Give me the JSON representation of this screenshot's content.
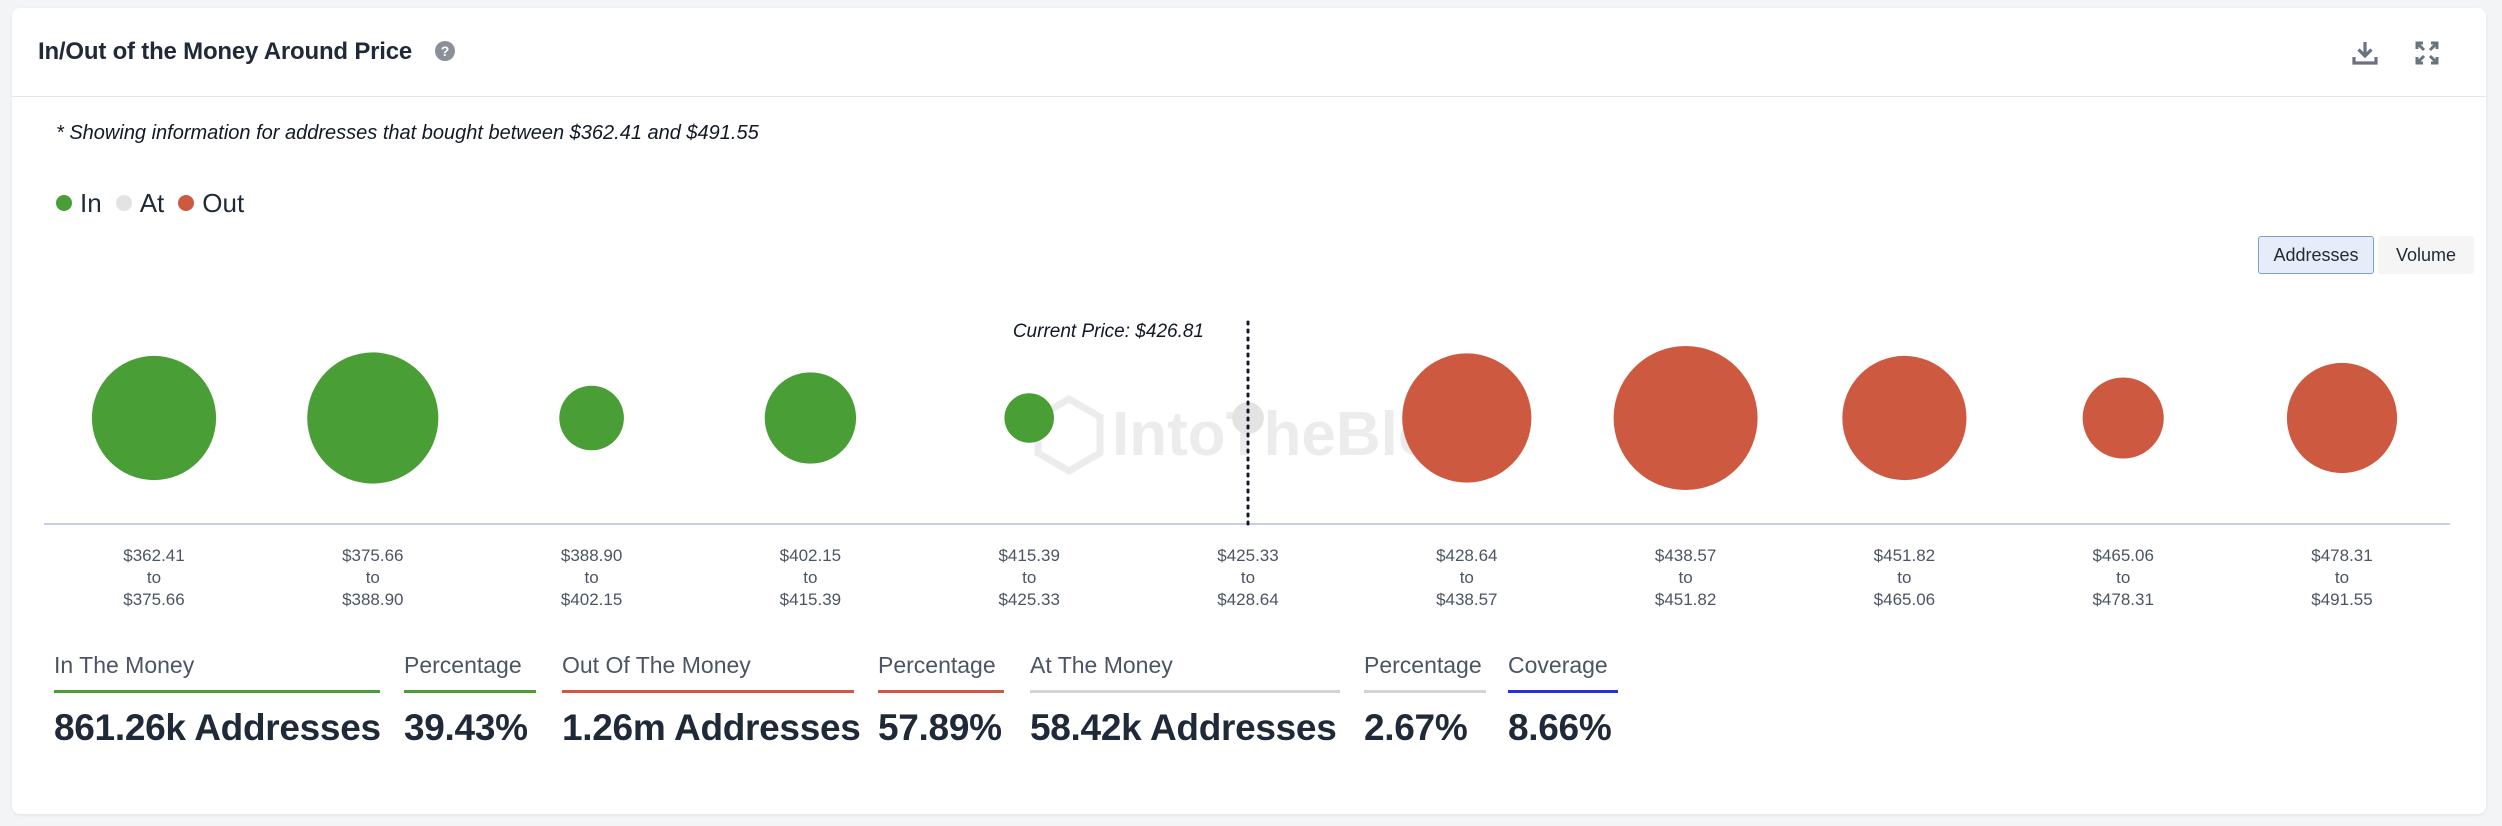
{
  "header": {
    "title": "In/Out of the Money Around Price"
  },
  "note": "* Showing information for addresses that bought between $362.41 and $491.55",
  "legend": [
    {
      "label": "In",
      "color": "#4a9e36"
    },
    {
      "label": "At",
      "color": "#e3e3e3"
    },
    {
      "label": "Out",
      "color": "#cd5a40"
    }
  ],
  "toggles": {
    "addresses": "Addresses",
    "volume": "Volume",
    "selected": "Addresses"
  },
  "colors": {
    "in": "#4a9e36",
    "at": "#e3e3e3",
    "out": "#cd5a40",
    "coverage": "#2533d6",
    "at_bar": "#d4d4d4"
  },
  "chart_data": {
    "type": "bubble",
    "current_price_label": "Current Price: $426.81",
    "current_price": 426.81,
    "watermark": "IntoTheBlock",
    "buckets": [
      {
        "from": "$362.41",
        "to": "$375.66",
        "status": "in",
        "size": 6.1
      },
      {
        "from": "$375.66",
        "to": "$388.90",
        "status": "in",
        "size": 6.8
      },
      {
        "from": "$388.90",
        "to": "$402.15",
        "status": "in",
        "size": 1.65
      },
      {
        "from": "$402.15",
        "to": "$415.39",
        "status": "in",
        "size": 3.3
      },
      {
        "from": "$415.39",
        "to": "$425.33",
        "status": "in",
        "size": 0.97
      },
      {
        "from": "$425.33",
        "to": "$428.64",
        "status": "at",
        "size": 0.4
      },
      {
        "from": "$428.64",
        "to": "$438.57",
        "status": "out",
        "size": 6.6
      },
      {
        "from": "$438.57",
        "to": "$451.82",
        "status": "out",
        "size": 8.2
      },
      {
        "from": "$451.82",
        "to": "$465.06",
        "status": "out",
        "size": 6.1
      },
      {
        "from": "$465.06",
        "to": "$478.31",
        "status": "out",
        "size": 2.6
      },
      {
        "from": "$478.31",
        "to": "$491.55",
        "status": "out",
        "size": 4.8
      }
    ],
    "to_word": "to"
  },
  "stats": [
    {
      "label": "In The Money",
      "value": "861.26k Addresses",
      "color_key": "in"
    },
    {
      "label": "Percentage",
      "value": "39.43%",
      "color_key": "in"
    },
    {
      "label": "Out Of The Money",
      "value": "1.26m Addresses",
      "color_key": "out"
    },
    {
      "label": "Percentage",
      "value": "57.89%",
      "color_key": "out"
    },
    {
      "label": "At The Money",
      "value": "58.42k Addresses",
      "color_key": "at_bar"
    },
    {
      "label": "Percentage",
      "value": "2.67%",
      "color_key": "at_bar"
    },
    {
      "label": "Coverage",
      "value": "8.66%",
      "color_key": "coverage"
    }
  ]
}
